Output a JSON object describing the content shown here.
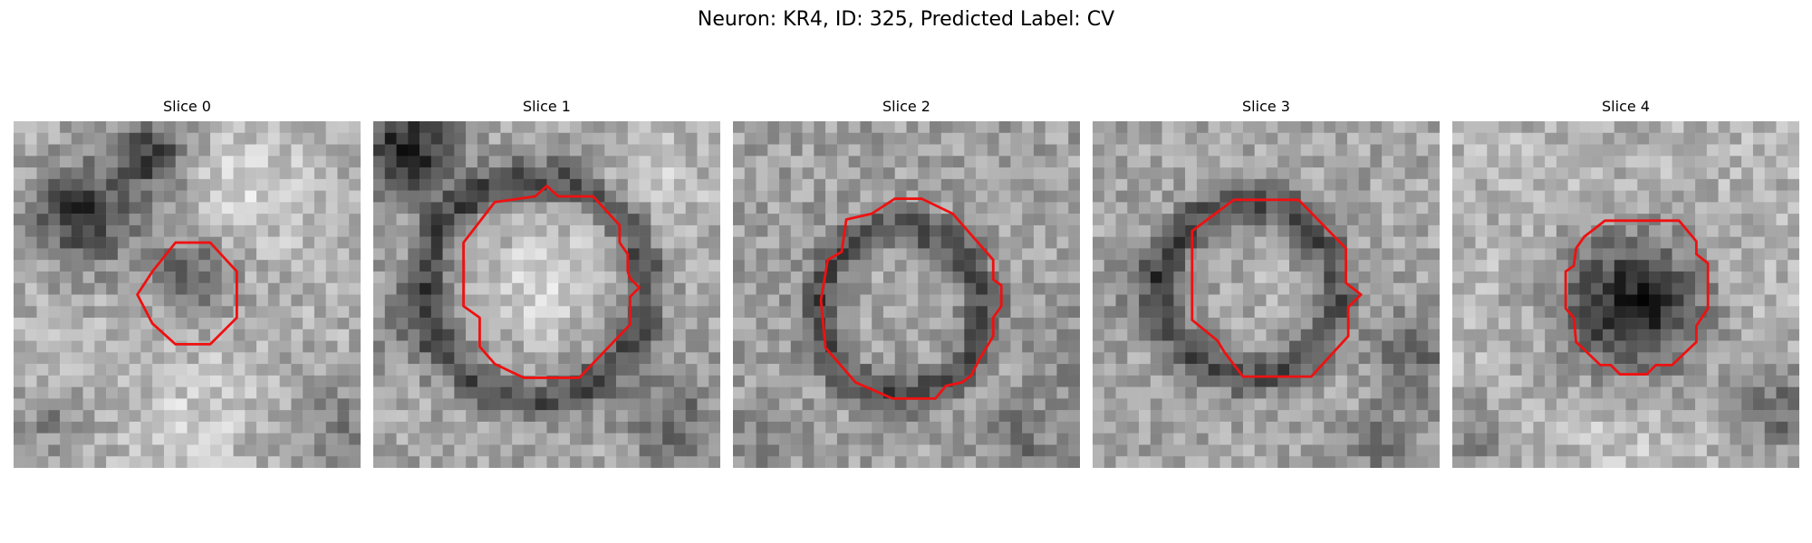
{
  "figure": {
    "title": "Neuron: KR4, ID: 325, Predicted Label: CV"
  },
  "panels": [
    {
      "title": "Slice 0"
    },
    {
      "title": "Slice 1"
    },
    {
      "title": "Slice 2"
    },
    {
      "title": "Slice 3"
    },
    {
      "title": "Slice 4"
    }
  ],
  "colors": {
    "contour": "#ee1111",
    "background": "#ffffff"
  }
}
